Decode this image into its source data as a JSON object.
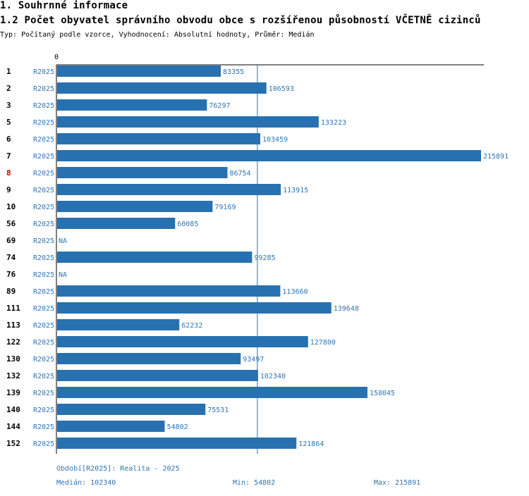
{
  "heading": "1. Souhrnné informace",
  "subheading": "1.2 Počet obyvatel správního obvodu obce s rozšířenou působností VČETNĚ cizinců",
  "description": "Typ: Počítaný podle vzorce, Vyhodnocení: Absolutní hodnoty, Průměr: Medián",
  "colors": {
    "bar": "#2771b0",
    "text_blue": "#2e75b6",
    "highlight": "#cc0000"
  },
  "chart_data": {
    "type": "bar",
    "orientation": "horizontal",
    "x_tick_label": "0",
    "period_label": "R2025",
    "highlighted": "8",
    "median": 102340,
    "xlim": [
      0,
      220000
    ],
    "rows": [
      {
        "id": "1",
        "value": 83355,
        "label": "83355"
      },
      {
        "id": "2",
        "value": 106593,
        "label": "106593"
      },
      {
        "id": "3",
        "value": 76297,
        "label": "76297"
      },
      {
        "id": "5",
        "value": 133223,
        "label": "133223"
      },
      {
        "id": "6",
        "value": 103459,
        "label": "103459"
      },
      {
        "id": "7",
        "value": 215891,
        "label": "215891"
      },
      {
        "id": "8",
        "value": 86754,
        "label": "86754"
      },
      {
        "id": "9",
        "value": 113915,
        "label": "113915"
      },
      {
        "id": "10",
        "value": 79169,
        "label": "79169"
      },
      {
        "id": "56",
        "value": 60085,
        "label": "60085"
      },
      {
        "id": "69",
        "value": null,
        "label": "NA"
      },
      {
        "id": "74",
        "value": 99285,
        "label": "99285"
      },
      {
        "id": "76",
        "value": null,
        "label": "NA"
      },
      {
        "id": "89",
        "value": 113660,
        "label": "113660"
      },
      {
        "id": "111",
        "value": 139648,
        "label": "139648"
      },
      {
        "id": "113",
        "value": 62232,
        "label": "62232"
      },
      {
        "id": "122",
        "value": 127800,
        "label": "127800"
      },
      {
        "id": "130",
        "value": 93497,
        "label": "93497"
      },
      {
        "id": "132",
        "value": 102340,
        "label": "102340"
      },
      {
        "id": "139",
        "value": 158045,
        "label": "158045"
      },
      {
        "id": "140",
        "value": 75531,
        "label": "75531"
      },
      {
        "id": "144",
        "value": 54802,
        "label": "54802"
      },
      {
        "id": "152",
        "value": 121864,
        "label": "121864"
      }
    ]
  },
  "footer": {
    "period": "Období[R2025]: Realita - 2025",
    "median": "Medián: 102340",
    "min": "Min: 54802",
    "max": "Max: 215891"
  }
}
